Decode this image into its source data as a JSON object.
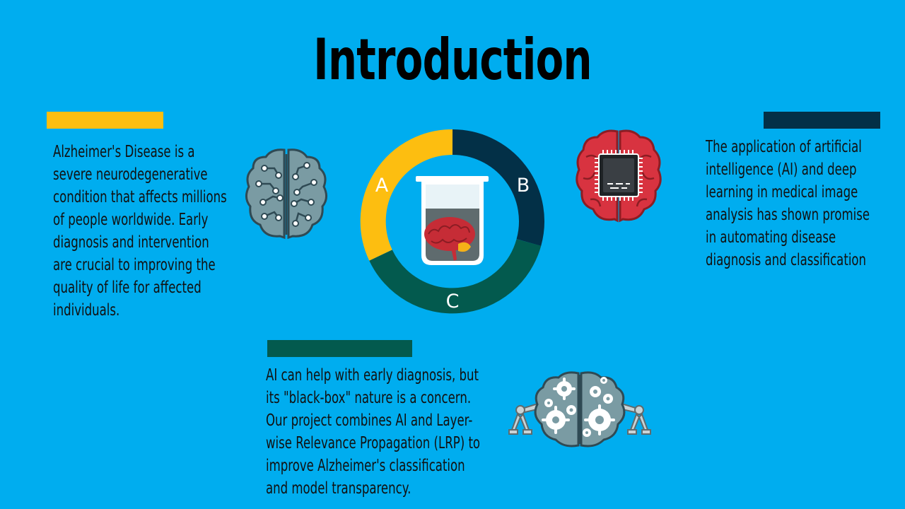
{
  "slide": {
    "title": "Introduction",
    "colors": {
      "background": "#00adef",
      "accent_yellow": "#fdbe10",
      "accent_navy": "#033047",
      "accent_teal": "#035a4e",
      "brain_red": "#d83340",
      "brain_gray": "#7a9ba3"
    },
    "left_block": {
      "bar_color": "#fdbe10",
      "lines": [
        "Alzheimer's Disease is a",
        "severe neurodegenerative",
        "condition that affects millions",
        "of people worldwide. Early",
        "diagnosis and intervention",
        "are crucial to improving the",
        "quality of life for affected",
        "individuals."
      ]
    },
    "right_block": {
      "bar_color": "#033047",
      "lines": [
        "The application of artificial",
        "intelligence (AI) and deep",
        "learning in medical image",
        "analysis has shown promise",
        "in automating disease",
        "diagnosis and classification"
      ]
    },
    "bottom_block": {
      "bar_color": "#035a4e",
      "lines": [
        "AI can help with early diagnosis, but",
        "its \"black-box\" nature is a concern.",
        "Our project combines AI and Layer-",
        "wise Relevance Propagation (LRP) to",
        "improve Alzheimer's classification",
        "and model transparency."
      ]
    },
    "ring": {
      "labels": {
        "a": "A",
        "b": "B",
        "c": "C"
      }
    },
    "icons": {
      "left": "circuit-brain-icon",
      "right": "chip-brain-icon",
      "bottom": "gear-brain-robot-arms-icon",
      "center": "brain-in-beaker-icon"
    }
  }
}
